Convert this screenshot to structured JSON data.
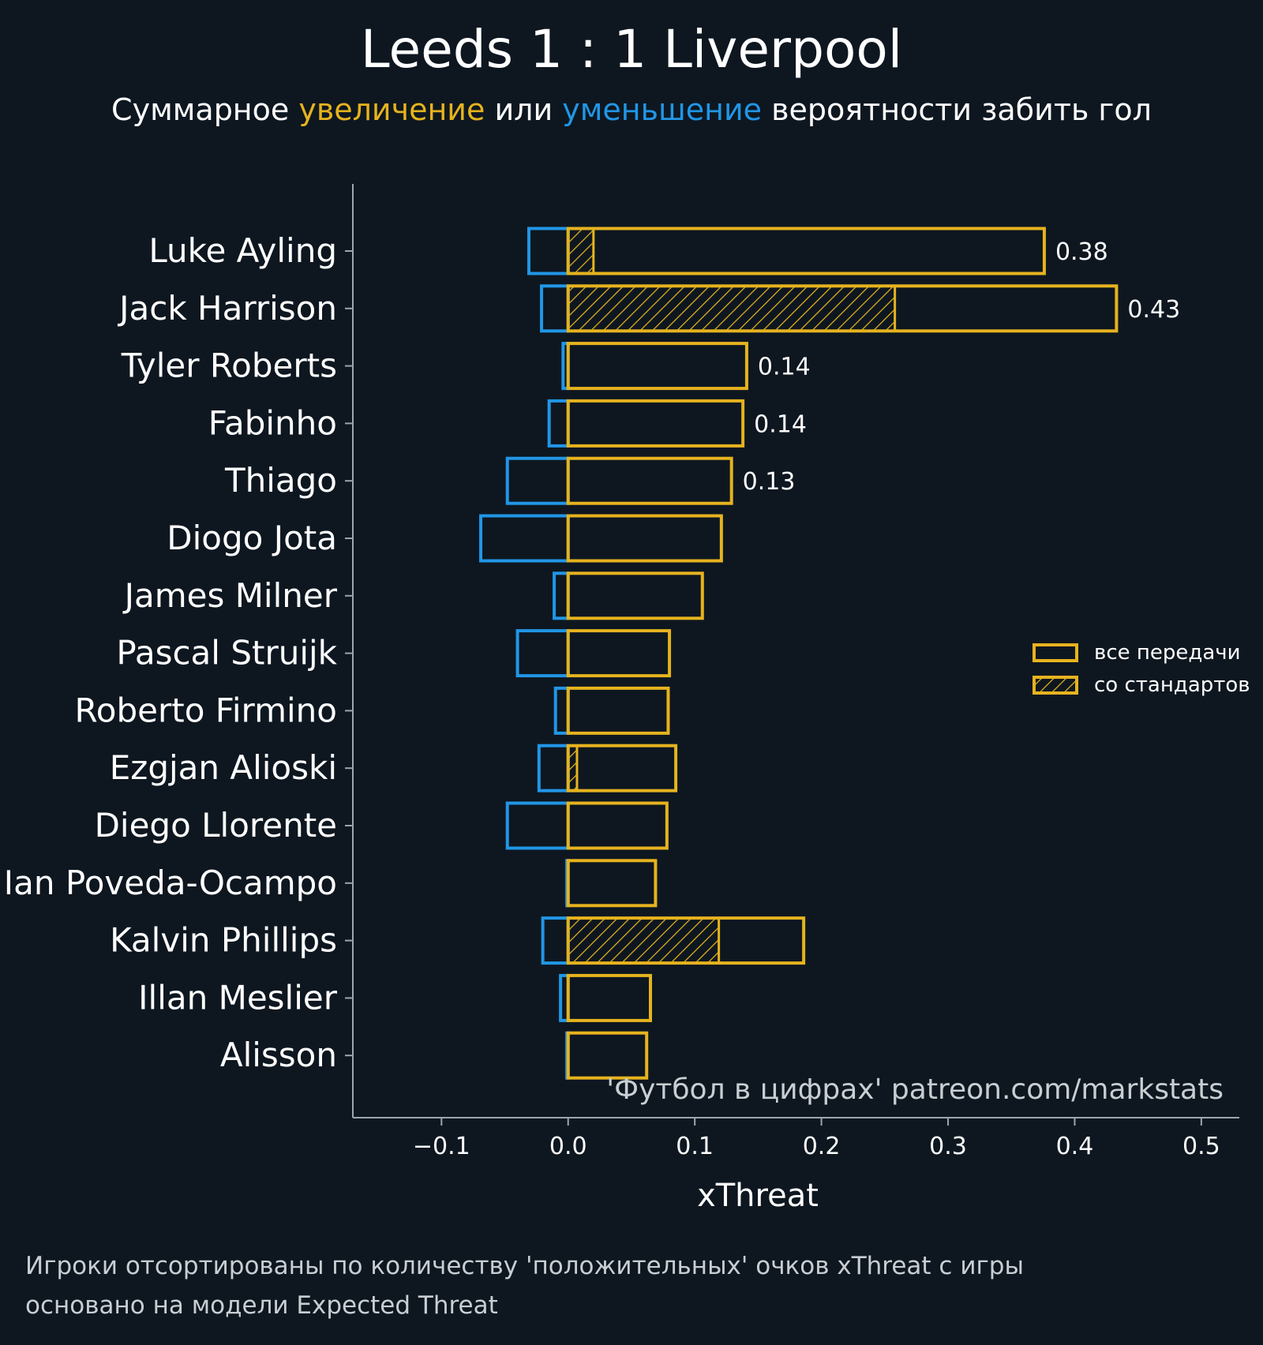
{
  "colors": {
    "background": "#0e1720",
    "positive": "#e6b31e",
    "negative": "#2196e6",
    "axis": "#9aa6ae",
    "text": "#ffffff",
    "muted": "#c8ced2"
  },
  "chart_data": {
    "type": "bar",
    "orientation": "horizontal",
    "title": "Leeds 1 : 1 Liverpool",
    "subtitle": {
      "before": "Суммарное ",
      "positive_word": "увеличение",
      "middle": " или ",
      "negative_word": "уменьшение",
      "after": " вероятности забить гол"
    },
    "xlabel": "xThreat",
    "xlim": [
      -0.17,
      0.53
    ],
    "xticks": [
      -0.1,
      0.0,
      0.1,
      0.2,
      0.3,
      0.4,
      0.5
    ],
    "xtick_labels": [
      "−0.1",
      "0.0",
      "0.1",
      "0.2",
      "0.3",
      "0.4",
      "0.5"
    ],
    "categories": [
      "Luke Ayling",
      "Jack Harrison",
      "Tyler Roberts",
      "Fabinho",
      "Thiago",
      "Diogo Jota",
      "James Milner",
      "Pascal Struijk",
      "Roberto Firmino",
      "Ezgjan Alioski",
      "Diego Llorente",
      "Ian Poveda-Ocampo",
      "Kalvin Phillips",
      "Illan Meslier",
      "Alisson"
    ],
    "series": [
      {
        "name": "все передачи (положительные)",
        "values": [
          0.376,
          0.433,
          0.141,
          0.138,
          0.129,
          0.121,
          0.106,
          0.08,
          0.079,
          0.085,
          0.078,
          0.069,
          0.186,
          0.065,
          0.062
        ]
      },
      {
        "name": "со стандартов (положительные)",
        "values": [
          0.02,
          0.258,
          0,
          0,
          0,
          0,
          0,
          0,
          0,
          0.007,
          0,
          0,
          0.119,
          0,
          0
        ]
      },
      {
        "name": "уменьшение",
        "values": [
          -0.031,
          -0.021,
          -0.004,
          -0.015,
          -0.048,
          -0.069,
          -0.011,
          -0.04,
          -0.01,
          -0.023,
          -0.048,
          -0.001,
          -0.02,
          -0.006,
          -0.001
        ]
      }
    ],
    "data_labels": [
      "0.38",
      "0.43",
      "0.14",
      "0.14",
      "0.13",
      "",
      "",
      "",
      "",
      "",
      "",
      "",
      "",
      "",
      ""
    ],
    "legend": {
      "position": "right",
      "items": [
        "все передачи",
        "со стандартов"
      ]
    },
    "watermark": "'Футбол в цифрах' patreon.com/markstats"
  },
  "footnote": {
    "line1": "Игроки отсортированы по количеству 'положительных' очков xThreat с игры",
    "line2": "основано на модели Expected Threat"
  }
}
